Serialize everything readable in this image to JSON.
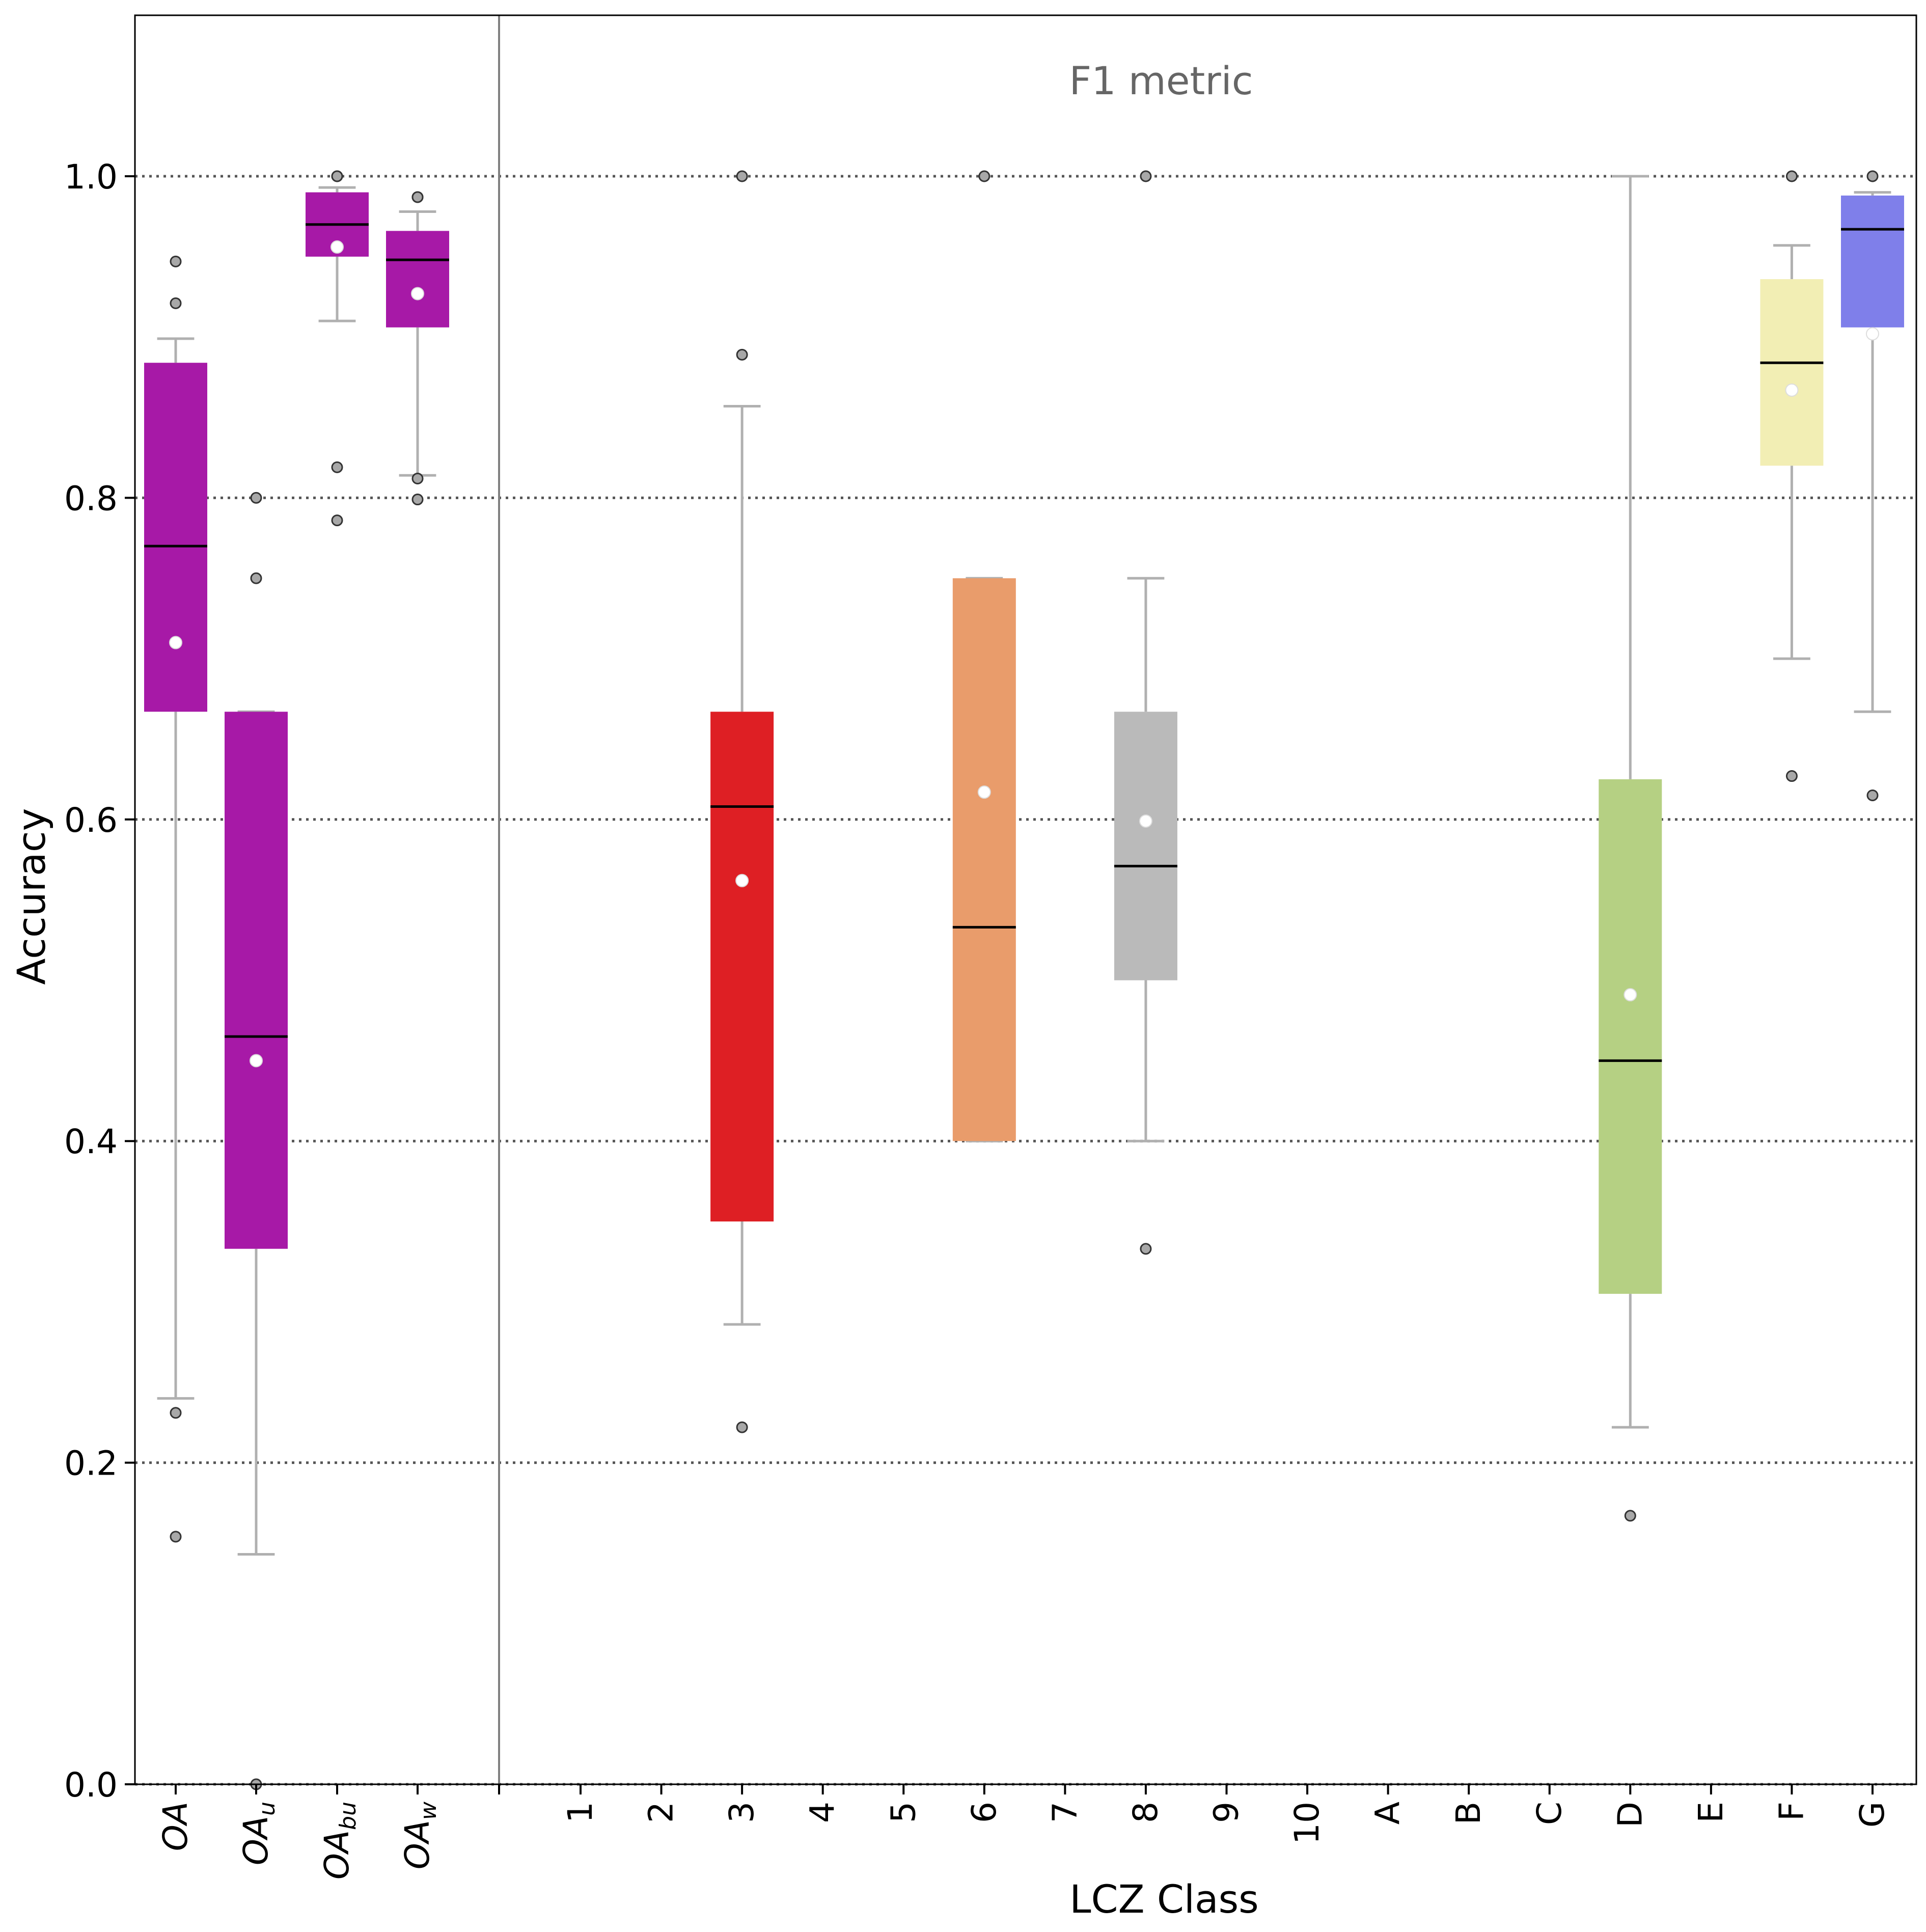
{
  "chart_data": {
    "type": "box",
    "annotation": "F1 metric",
    "xlabel": "LCZ Class",
    "ylabel": "Accuracy",
    "ylim": [
      0.0,
      1.1
    ],
    "yticks": [
      "0.0",
      "0.2",
      "0.4",
      "0.6",
      "0.8",
      "1.0"
    ],
    "ytick_values": [
      0.0,
      0.2,
      0.4,
      0.6,
      0.8,
      1.0
    ],
    "grid": "horizontal dotted at major y ticks",
    "overall_categories": [
      {
        "base": "OA",
        "sub": ""
      },
      {
        "base": "OA",
        "sub": "u"
      },
      {
        "base": "OA",
        "sub": "bu"
      },
      {
        "base": "OA",
        "sub": "w"
      }
    ],
    "class_categories": [
      "1",
      "2",
      "3",
      "4",
      "5",
      "6",
      "7",
      "8",
      "9",
      "10",
      "A",
      "B",
      "C",
      "D",
      "E",
      "F",
      "G"
    ],
    "boxes": [
      {
        "category": "OA",
        "color": "#a719a7",
        "q1": 0.667,
        "median": 0.77,
        "q3": 0.884,
        "whisker_low": 0.24,
        "whisker_high": 0.899,
        "mean": 0.71,
        "outliers": [
          0.947,
          0.921,
          0.231,
          0.154
        ]
      },
      {
        "category": "OA_u",
        "color": "#a719a7",
        "q1": 0.333,
        "median": 0.465,
        "q3": 0.667,
        "whisker_low": 0.143,
        "whisker_high": 0.667,
        "mean": 0.45,
        "outliers": [
          0.8,
          0.75,
          0.0
        ]
      },
      {
        "category": "OA_bu",
        "color": "#a719a7",
        "q1": 0.95,
        "median": 0.97,
        "q3": 0.99,
        "whisker_low": 0.91,
        "whisker_high": 0.993,
        "mean": 0.956,
        "outliers": [
          1.0,
          1.0,
          0.819,
          0.786
        ]
      },
      {
        "category": "OA_w",
        "color": "#a719a7",
        "q1": 0.906,
        "median": 0.948,
        "q3": 0.966,
        "whisker_low": 0.814,
        "whisker_high": 0.978,
        "mean": 0.927,
        "outliers": [
          0.987,
          0.987,
          0.812,
          0.799
        ]
      },
      {
        "category": "3",
        "color": "#de1f24",
        "q1": 0.35,
        "median": 0.608,
        "q3": 0.667,
        "whisker_low": 0.286,
        "whisker_high": 0.857,
        "mean": 0.562,
        "outliers": [
          1.0,
          0.889,
          0.222
        ]
      },
      {
        "category": "6",
        "color": "#e99c6b",
        "q1": 0.4,
        "median": 0.533,
        "q3": 0.75,
        "whisker_low": 0.4,
        "whisker_high": 0.75,
        "mean": 0.617,
        "outliers": [
          1.0
        ]
      },
      {
        "category": "8",
        "color": "#bababa",
        "q1": 0.5,
        "median": 0.571,
        "q3": 0.667,
        "whisker_low": 0.4,
        "whisker_high": 0.75,
        "mean": 0.599,
        "outliers": [
          1.0,
          0.333
        ]
      },
      {
        "category": "D",
        "color": "#b5d083",
        "q1": 0.305,
        "median": 0.45,
        "q3": 0.625,
        "whisker_low": 0.222,
        "whisker_high": 1.0,
        "mean": 0.491,
        "outliers": [
          0.167
        ]
      },
      {
        "category": "F",
        "color": "#f2eeb4",
        "q1": 0.82,
        "median": 0.884,
        "q3": 0.936,
        "whisker_low": 0.7,
        "whisker_high": 0.957,
        "mean": 0.867,
        "outliers": [
          1.0,
          0.627
        ]
      },
      {
        "category": "G",
        "color": "#7f7fea",
        "q1": 0.906,
        "median": 0.967,
        "q3": 0.988,
        "whisker_low": 0.667,
        "whisker_high": 0.99,
        "mean": 0.902,
        "outliers": [
          1.0,
          0.615
        ]
      }
    ]
  }
}
